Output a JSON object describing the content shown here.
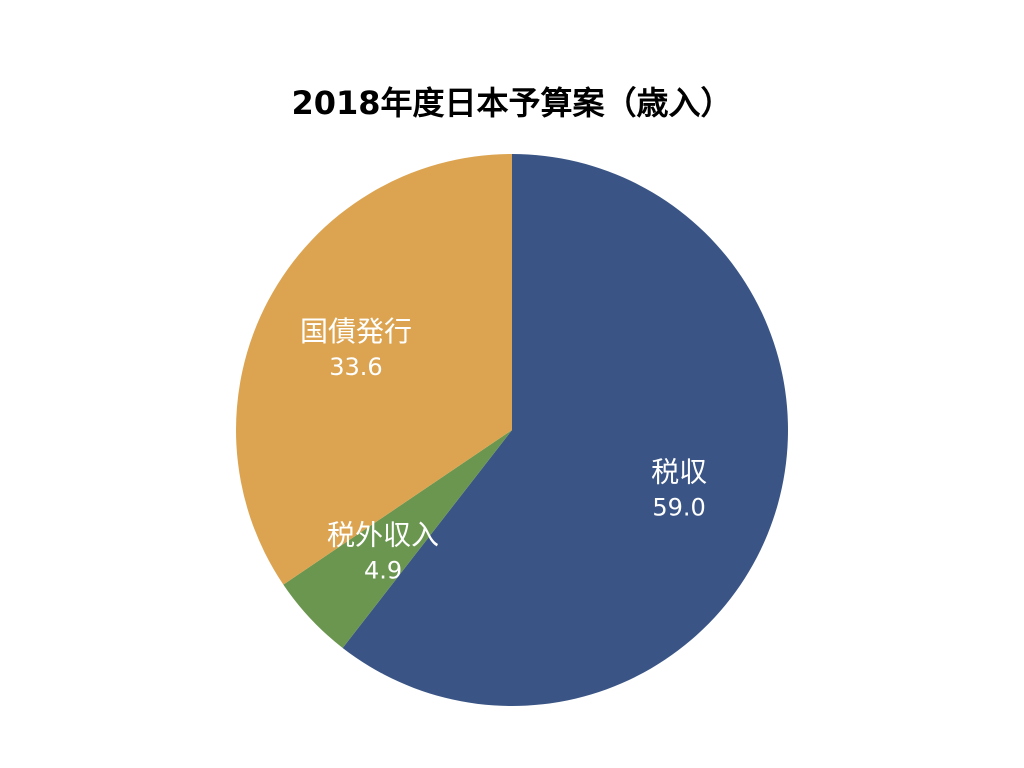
{
  "title": "2018年度日本予算案（歳入）",
  "chart_data": {
    "type": "pie",
    "title": "2018年度日本予算案（歳入）",
    "categories": [
      "税収",
      "税外収入",
      "国債発行"
    ],
    "values": [
      59.0,
      4.9,
      33.6
    ],
    "value_labels": [
      "59.0",
      "4.9",
      "33.6"
    ],
    "colors": [
      "#3a5585",
      "#6a9650",
      "#dca451"
    ],
    "start_angle_deg": 0,
    "direction": "clockwise",
    "legend": "none",
    "labels_inside": true
  }
}
